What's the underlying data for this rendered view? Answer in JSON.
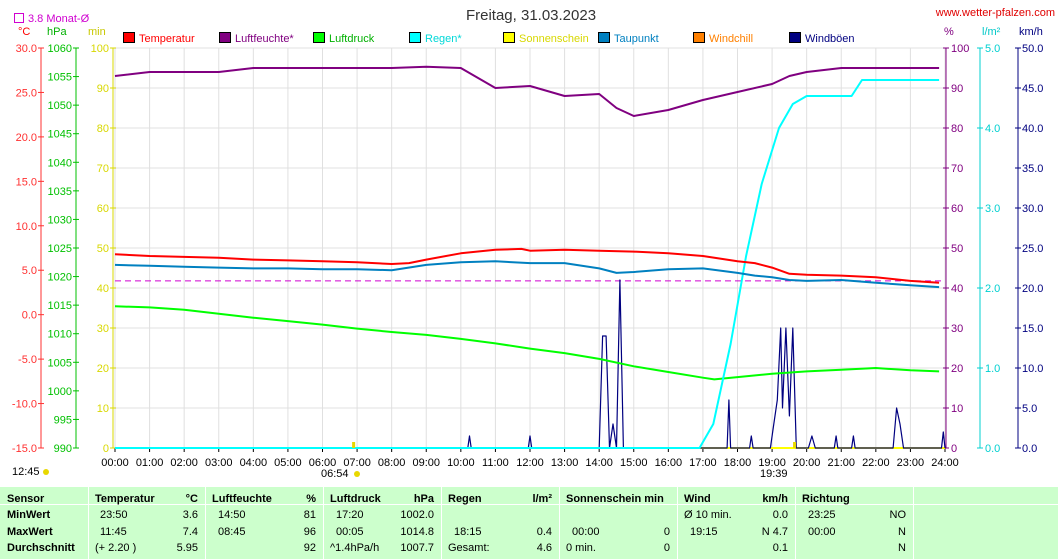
{
  "title": "Freitag, 31.03.2023",
  "source": "www.wetter-pfalzen.com",
  "monthly_avg_label": "3.8 Monat-Ø",
  "units": {
    "temp": "°C",
    "pressure": "hPa",
    "minutes": "min",
    "percent": "%",
    "rain": "l/m²",
    "wind": "km/h"
  },
  "axes": {
    "temp_ticks": [
      "30.0",
      "25.0",
      "20.0",
      "15.0",
      "10.0",
      "5.0",
      "0.0",
      "-5.0",
      "-10.0",
      "-15.0"
    ],
    "pressure_ticks": [
      "1060",
      "1055",
      "1050",
      "1045",
      "1040",
      "1035",
      "1030",
      "1025",
      "1020",
      "1015",
      "1010",
      "1005",
      "1000",
      "995",
      "990"
    ],
    "minutes_ticks": [
      "100",
      "90",
      "80",
      "70",
      "60",
      "50",
      "40",
      "30",
      "20",
      "10",
      "0"
    ],
    "percent_ticks": [
      "100",
      "90",
      "80",
      "70",
      "60",
      "50",
      "40",
      "30",
      "20",
      "10",
      "0"
    ],
    "rain_ticks": [
      "5.0",
      "4.0",
      "3.0",
      "2.0",
      "1.0",
      "0.0"
    ],
    "wind_ticks": [
      "50.0",
      "45.0",
      "40.0",
      "35.0",
      "30.0",
      "25.0",
      "20.0",
      "15.0",
      "10.0",
      "5.0",
      "0.0"
    ],
    "time_ticks": [
      "00:00",
      "01:00",
      "02:00",
      "03:00",
      "04:00",
      "05:00",
      "06:00",
      "07:00",
      "08:00",
      "09:00",
      "10:00",
      "11:00",
      "12:00",
      "13:00",
      "14:00",
      "15:00",
      "16:00",
      "17:00",
      "18:00",
      "19:00",
      "20:00",
      "21:00",
      "22:00",
      "23:00",
      "24:00"
    ]
  },
  "sun_marks": {
    "sunrise": "06:54",
    "sunset": "19:39",
    "day_length": "12:45"
  },
  "legend": [
    {
      "label": "Temperatur",
      "color": "#ff0000"
    },
    {
      "label": "Luftfeuchte*",
      "color": "#800080"
    },
    {
      "label": "Luftdruck",
      "color": "#00ff00"
    },
    {
      "label": "Regen*",
      "color": "#00ffff"
    },
    {
      "label": "Sonnenschein",
      "color": "#ffff00"
    },
    {
      "label": "Taupunkt",
      "color": "#0080c0"
    },
    {
      "label": "Windchill",
      "color": "#ff8000"
    },
    {
      "label": "Windböen",
      "color": "#000080"
    }
  ],
  "chart_data": {
    "type": "line",
    "x_unit": "hours",
    "xlim": [
      0,
      24
    ],
    "monthly_avg_temp": 3.8,
    "series": [
      {
        "name": "Temperatur",
        "axis": "temp",
        "range": [
          -15,
          30
        ],
        "points": [
          [
            0,
            6.8
          ],
          [
            1,
            6.6
          ],
          [
            2,
            6.5
          ],
          [
            3,
            6.4
          ],
          [
            4,
            6.2
          ],
          [
            5,
            6.1
          ],
          [
            6,
            6.0
          ],
          [
            7,
            5.9
          ],
          [
            8,
            5.7
          ],
          [
            8.5,
            5.8
          ],
          [
            9,
            6.2
          ],
          [
            10,
            6.9
          ],
          [
            11,
            7.3
          ],
          [
            11.75,
            7.4
          ],
          [
            12,
            7.2
          ],
          [
            13,
            7.3
          ],
          [
            14,
            7.2
          ],
          [
            15,
            7.1
          ],
          [
            16,
            6.9
          ],
          [
            17,
            6.6
          ],
          [
            18,
            6.0
          ],
          [
            18.5,
            5.8
          ],
          [
            19,
            5.3
          ],
          [
            19.5,
            4.6
          ],
          [
            20,
            4.5
          ],
          [
            21,
            4.4
          ],
          [
            22,
            4.2
          ],
          [
            23,
            3.8
          ],
          [
            23.83,
            3.6
          ]
        ]
      },
      {
        "name": "Taupunkt",
        "axis": "temp",
        "range": [
          -15,
          30
        ],
        "points": [
          [
            0,
            5.6
          ],
          [
            1,
            5.5
          ],
          [
            2,
            5.4
          ],
          [
            3,
            5.3
          ],
          [
            4,
            5.2
          ],
          [
            5,
            5.2
          ],
          [
            6,
            5.1
          ],
          [
            7,
            5.1
          ],
          [
            8,
            5.0
          ],
          [
            9,
            5.6
          ],
          [
            10,
            5.9
          ],
          [
            11,
            6.0
          ],
          [
            12,
            5.8
          ],
          [
            13,
            5.8
          ],
          [
            14,
            5.2
          ],
          [
            14.5,
            4.7
          ],
          [
            15,
            4.8
          ],
          [
            16,
            5.1
          ],
          [
            17,
            5.2
          ],
          [
            18,
            4.7
          ],
          [
            18.5,
            4.4
          ],
          [
            19,
            4.2
          ],
          [
            19.5,
            3.9
          ],
          [
            20,
            3.8
          ],
          [
            21,
            3.9
          ],
          [
            22,
            3.6
          ],
          [
            23,
            3.3
          ],
          [
            23.83,
            3.1
          ]
        ]
      },
      {
        "name": "Luftfeuchte*",
        "axis": "percent",
        "range": [
          0,
          100
        ],
        "points": [
          [
            0,
            93
          ],
          [
            1,
            94
          ],
          [
            2,
            94
          ],
          [
            3,
            94
          ],
          [
            4,
            95
          ],
          [
            5,
            95
          ],
          [
            6,
            95
          ],
          [
            7,
            95
          ],
          [
            8,
            95
          ],
          [
            9,
            95.3
          ],
          [
            10,
            95
          ],
          [
            11,
            90
          ],
          [
            12,
            90.5
          ],
          [
            13,
            88
          ],
          [
            14,
            88.5
          ],
          [
            14.5,
            85
          ],
          [
            15,
            83
          ],
          [
            16,
            84.5
          ],
          [
            17,
            87
          ],
          [
            18,
            89
          ],
          [
            19,
            91
          ],
          [
            19.5,
            93
          ],
          [
            20,
            94
          ],
          [
            21,
            95
          ],
          [
            22,
            95
          ],
          [
            23,
            95
          ],
          [
            23.83,
            95
          ]
        ]
      },
      {
        "name": "Luftdruck",
        "axis": "pressure",
        "range": [
          990,
          1060
        ],
        "points": [
          [
            0,
            1014.8
          ],
          [
            1,
            1014.6
          ],
          [
            2,
            1014.2
          ],
          [
            3,
            1013.5
          ],
          [
            4,
            1012.8
          ],
          [
            5,
            1012.2
          ],
          [
            6,
            1011.6
          ],
          [
            7,
            1010.9
          ],
          [
            8,
            1010.3
          ],
          [
            9,
            1009.8
          ],
          [
            10,
            1009.1
          ],
          [
            11,
            1008.3
          ],
          [
            12,
            1007.4
          ],
          [
            13,
            1006.6
          ],
          [
            14,
            1005.6
          ],
          [
            15,
            1004.3
          ],
          [
            16,
            1003.3
          ],
          [
            17,
            1002.3
          ],
          [
            17.33,
            1002.0
          ],
          [
            18,
            1002.4
          ],
          [
            19,
            1003.0
          ],
          [
            20,
            1003.4
          ],
          [
            21,
            1003.7
          ],
          [
            22,
            1004.0
          ],
          [
            23,
            1003.6
          ],
          [
            23.83,
            1003.4
          ]
        ]
      },
      {
        "name": "Regen*",
        "axis": "rain",
        "range": [
          0,
          5
        ],
        "points": [
          [
            0,
            0
          ],
          [
            16.9,
            0
          ],
          [
            17.3,
            0.3
          ],
          [
            17.8,
            1.3
          ],
          [
            18.25,
            2.4
          ],
          [
            18.7,
            3.3
          ],
          [
            19.2,
            4.0
          ],
          [
            19.6,
            4.3
          ],
          [
            20,
            4.4
          ],
          [
            21,
            4.4
          ],
          [
            21.3,
            4.4
          ],
          [
            21.6,
            4.6
          ],
          [
            22,
            4.6
          ],
          [
            23,
            4.6
          ],
          [
            23.83,
            4.6
          ]
        ]
      },
      {
        "name": "Windböen",
        "axis": "wind",
        "range": [
          0,
          50
        ],
        "points": [
          [
            0,
            0
          ],
          [
            10.2,
            0
          ],
          [
            10.25,
            1.5
          ],
          [
            10.3,
            0
          ],
          [
            11.95,
            0
          ],
          [
            12,
            1.5
          ],
          [
            12.05,
            0
          ],
          [
            14.0,
            0
          ],
          [
            14.1,
            14
          ],
          [
            14.2,
            14
          ],
          [
            14.3,
            0
          ],
          [
            14.4,
            3
          ],
          [
            14.5,
            0
          ],
          [
            14.6,
            21
          ],
          [
            14.7,
            0
          ],
          [
            16.9,
            0
          ],
          [
            17,
            0
          ],
          [
            17.7,
            0
          ],
          [
            17.75,
            6
          ],
          [
            17.8,
            0
          ],
          [
            18.35,
            0
          ],
          [
            18.4,
            1.5
          ],
          [
            18.45,
            0
          ],
          [
            18.95,
            0
          ],
          [
            19.05,
            3
          ],
          [
            19.15,
            6
          ],
          [
            19.25,
            15
          ],
          [
            19.3,
            5
          ],
          [
            19.4,
            15
          ],
          [
            19.5,
            4
          ],
          [
            19.6,
            15
          ],
          [
            19.7,
            0
          ],
          [
            20.05,
            0
          ],
          [
            20.15,
            1.5
          ],
          [
            20.25,
            0
          ],
          [
            20.8,
            0
          ],
          [
            20.85,
            1.5
          ],
          [
            20.9,
            0
          ],
          [
            21.3,
            0
          ],
          [
            21.35,
            1.5
          ],
          [
            21.4,
            0
          ],
          [
            22.5,
            0
          ],
          [
            22.6,
            5
          ],
          [
            22.7,
            3
          ],
          [
            22.8,
            0
          ],
          [
            23.9,
            0
          ],
          [
            23.95,
            2
          ],
          [
            24,
            0
          ]
        ]
      },
      {
        "name": "Sonnenschein",
        "axis": "minutes",
        "range": [
          0,
          100
        ],
        "points": [
          [
            0,
            0
          ],
          [
            24,
            0
          ]
        ]
      },
      {
        "name": "Windchill",
        "axis": "temp",
        "range": [
          -15,
          30
        ],
        "points": []
      }
    ]
  },
  "stats": {
    "row_labels": {
      "sensor": "Sensor",
      "min": "MinWert",
      "max": "MaxWert",
      "avg": "Durchschnitt"
    },
    "temperature": {
      "header": "Temperatur",
      "unit": "°C",
      "min_time": "23:50",
      "min_val": "3.6",
      "max_time": "11:45",
      "max_val": "7.4",
      "avg_extra": "(+ 2.20 )",
      "avg_val": "5.95"
    },
    "humidity": {
      "header": "Luftfeuchte",
      "unit": "%",
      "min_time": "14:50",
      "min_val": "81",
      "max_time": "08:45",
      "max_val": "96",
      "avg_val": "92"
    },
    "pressure": {
      "header": "Luftdruck",
      "unit": "hPa",
      "min_time": "17:20",
      "min_val": "1002.0",
      "max_time": "00:05",
      "max_val": "1014.8",
      "avg_extra": "^1.4hPa/h",
      "avg_val": "1007.7"
    },
    "rain": {
      "header": "Regen",
      "unit": "l/m²",
      "max_time": "18:15",
      "max_val": "0.4",
      "avg_label": "Gesamt:",
      "avg_val": "4.6"
    },
    "sunshine": {
      "header": "Sonnenschein min",
      "max_time": "00:00",
      "max_val": "0",
      "avg_label": "0 min.",
      "avg_val": "0"
    },
    "wind": {
      "header": "Wind",
      "unit": "km/h",
      "min_label": "Ø 10 min.",
      "min_val": "0.0",
      "max_time": "19:15",
      "max_val": "N 4.7",
      "avg_val": "0.1"
    },
    "direction": {
      "header": "Richtung",
      "min_time": "23:25",
      "min_val": "NO",
      "max_time": "00:00",
      "max_val": "N",
      "avg_val": "N"
    }
  }
}
